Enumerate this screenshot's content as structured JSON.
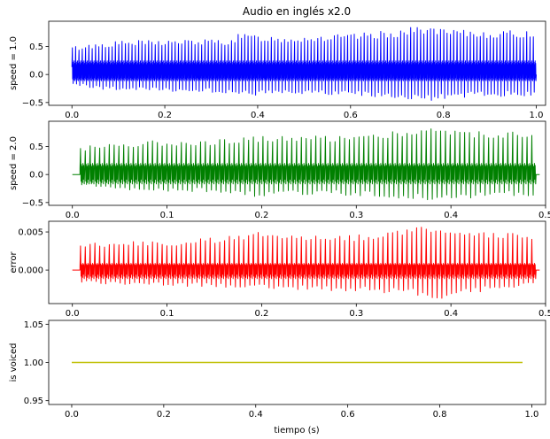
{
  "figure": {
    "title": "Audio en inglés x2.0",
    "xlabel": "tiempo (s)"
  },
  "chart_data": [
    {
      "type": "line",
      "name": "panel-speed-1",
      "title": "Audio en inglés x2.0",
      "ylabel": "speed = 1.0",
      "xlabel": "",
      "xlim": [
        -0.05,
        1.02
      ],
      "ylim": [
        -0.55,
        0.95
      ],
      "xticks": [
        0.0,
        0.2,
        0.4,
        0.6,
        0.8,
        1.0
      ],
      "xtick_labels": [
        "0.0",
        "0.2",
        "0.4",
        "0.6",
        "0.8",
        "1.0"
      ],
      "yticks": [
        -0.5,
        0.0,
        0.5
      ],
      "ytick_labels": [
        "−0.5",
        "0.0",
        "0.5"
      ],
      "color": "#0000ff",
      "signal": {
        "x_start": 0.0,
        "x_end": 1.0,
        "n_cycles": 140,
        "upper_envelope": [
          [
            0.0,
            0.5
          ],
          [
            0.05,
            0.56
          ],
          [
            0.1,
            0.6
          ],
          [
            0.2,
            0.62
          ],
          [
            0.34,
            0.63
          ],
          [
            0.36,
            0.73
          ],
          [
            0.45,
            0.68
          ],
          [
            0.6,
            0.72
          ],
          [
            0.7,
            0.8
          ],
          [
            0.76,
            0.88
          ],
          [
            0.8,
            0.8
          ],
          [
            0.9,
            0.78
          ],
          [
            1.0,
            0.78
          ]
        ],
        "lower_envelope": [
          [
            0.0,
            -0.18
          ],
          [
            0.05,
            -0.26
          ],
          [
            0.15,
            -0.3
          ],
          [
            0.3,
            -0.32
          ],
          [
            0.36,
            -0.38
          ],
          [
            0.45,
            -0.36
          ],
          [
            0.6,
            -0.38
          ],
          [
            0.72,
            -0.44
          ],
          [
            0.77,
            -0.48
          ],
          [
            0.85,
            -0.4
          ],
          [
            1.0,
            -0.38
          ]
        ],
        "core_band": [
          -0.08,
          0.22
        ]
      }
    },
    {
      "type": "line",
      "name": "panel-speed-2",
      "title": "",
      "ylabel": "speed = 2.0",
      "xlabel": "",
      "xlim": [
        -0.025,
        0.5
      ],
      "ylim": [
        -0.55,
        0.95
      ],
      "xticks": [
        0.0,
        0.1,
        0.2,
        0.3,
        0.4,
        0.5
      ],
      "xtick_labels": [
        "0.0",
        "0.1",
        "0.2",
        "0.3",
        "0.4",
        "0.5"
      ],
      "yticks": [
        -0.5,
        0.0,
        0.5
      ],
      "ytick_labels": [
        "−0.5",
        "0.0",
        "0.5"
      ],
      "color": "#008000",
      "signal": {
        "x_start": 0.0,
        "x_end": 0.49,
        "lead_in": 0.008,
        "n_cycles": 95,
        "upper_envelope": [
          [
            0.008,
            0.5
          ],
          [
            0.05,
            0.58
          ],
          [
            0.1,
            0.62
          ],
          [
            0.17,
            0.63
          ],
          [
            0.18,
            0.72
          ],
          [
            0.22,
            0.68
          ],
          [
            0.3,
            0.72
          ],
          [
            0.35,
            0.8
          ],
          [
            0.38,
            0.88
          ],
          [
            0.4,
            0.8
          ],
          [
            0.45,
            0.78
          ],
          [
            0.48,
            0.78
          ]
        ],
        "lower_envelope": [
          [
            0.008,
            -0.2
          ],
          [
            0.05,
            -0.28
          ],
          [
            0.15,
            -0.32
          ],
          [
            0.18,
            -0.4
          ],
          [
            0.25,
            -0.36
          ],
          [
            0.3,
            -0.38
          ],
          [
            0.36,
            -0.44
          ],
          [
            0.39,
            -0.48
          ],
          [
            0.43,
            -0.4
          ],
          [
            0.48,
            -0.38
          ]
        ],
        "core_band": [
          -0.12,
          0.18
        ]
      }
    },
    {
      "type": "line",
      "name": "panel-error",
      "title": "",
      "ylabel": "error",
      "xlabel": "",
      "xlim": [
        -0.025,
        0.5
      ],
      "ylim": [
        -0.0044,
        0.0064
      ],
      "xticks": [
        0.0,
        0.1,
        0.2,
        0.3,
        0.4,
        0.5
      ],
      "xtick_labels": [
        "0.0",
        "0.1",
        "0.2",
        "0.3",
        "0.4",
        "0.5"
      ],
      "yticks": [
        0.0,
        0.005
      ],
      "ytick_labels": [
        "0.000",
        "0.005"
      ],
      "color": "#ff0000",
      "signal": {
        "x_start": 0.0,
        "x_end": 0.49,
        "lead_in": 0.008,
        "n_cycles": 95,
        "upper_envelope": [
          [
            0.008,
            0.0035
          ],
          [
            0.05,
            0.0038
          ],
          [
            0.1,
            0.0037
          ],
          [
            0.17,
            0.0045
          ],
          [
            0.2,
            0.0052
          ],
          [
            0.25,
            0.0047
          ],
          [
            0.3,
            0.0046
          ],
          [
            0.35,
            0.0055
          ],
          [
            0.38,
            0.006
          ],
          [
            0.42,
            0.005
          ],
          [
            0.48,
            0.0048
          ]
        ],
        "lower_envelope": [
          [
            0.008,
            -0.0017
          ],
          [
            0.05,
            -0.002
          ],
          [
            0.15,
            -0.0022
          ],
          [
            0.2,
            -0.0025
          ],
          [
            0.3,
            -0.0028
          ],
          [
            0.36,
            -0.0032
          ],
          [
            0.38,
            -0.0042
          ],
          [
            0.42,
            -0.003
          ],
          [
            0.48,
            -0.002
          ]
        ],
        "core_band": [
          -0.0008,
          0.0008
        ]
      }
    },
    {
      "type": "line",
      "name": "panel-voiced",
      "title": "",
      "ylabel": "is voiced",
      "xlabel": "tiempo (s)",
      "xlim": [
        -0.05,
        1.03
      ],
      "ylim": [
        0.945,
        1.055
      ],
      "xticks": [
        0.0,
        0.2,
        0.4,
        0.6,
        0.8,
        1.0
      ],
      "xtick_labels": [
        "0.0",
        "0.2",
        "0.4",
        "0.6",
        "0.8",
        "1.0"
      ],
      "yticks": [
        0.95,
        1.0,
        1.05
      ],
      "ytick_labels": [
        "0.95",
        "1.00",
        "1.05"
      ],
      "color": "#bfbf00",
      "series": [
        {
          "x": [
            0.0,
            0.98
          ],
          "y": [
            1.0,
            1.0
          ]
        }
      ]
    }
  ]
}
